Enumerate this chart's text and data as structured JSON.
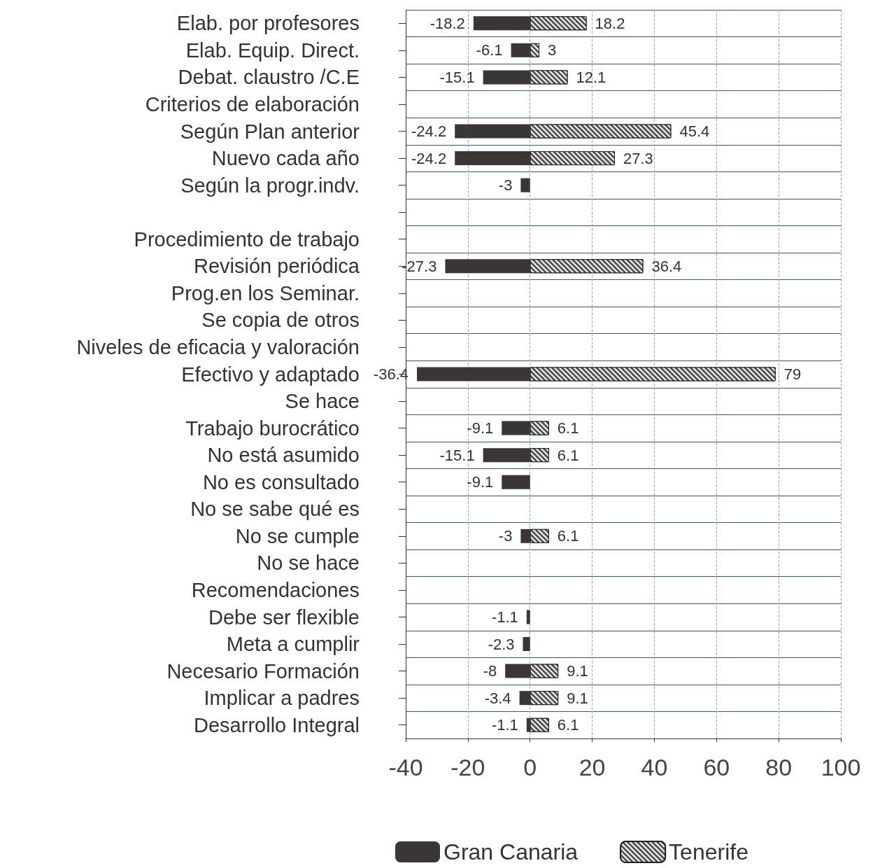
{
  "chart_data": {
    "type": "bar",
    "orientation": "horizontal",
    "categories": [
      "Elab. por profesores",
      "Elab. Equip. Direct.",
      "Debat. claustro /C.E",
      "Criterios de elaboración",
      "Según Plan anterior",
      "Nuevo cada año",
      "Según la progr.indv.",
      null,
      "Procedimiento de trabajo",
      "Revisión periódica",
      "Prog.en los Seminar.",
      "Se copia de otros",
      "Niveles de eficacia y valoración",
      "Efectivo y adaptado",
      "Se hace",
      "Trabajo burocrático",
      "No está asumido",
      "No es consultado",
      "No se sabe qué es",
      "No se cumple",
      "No se hace",
      "Recomendaciones",
      "Debe ser flexible",
      "Meta a cumplir",
      "Necesario Formación",
      "Implicar a padres",
      "Desarrollo Integral"
    ],
    "series": [
      {
        "name": "Gran Canaria",
        "color": "#3a3636",
        "values": [
          -18.2,
          -6.1,
          -15.1,
          null,
          -24.2,
          -24.2,
          -3,
          null,
          null,
          -27.3,
          null,
          null,
          null,
          -36.4,
          null,
          -9.1,
          -15.1,
          -9.1,
          null,
          -3,
          null,
          null,
          -1.1,
          -2.3,
          -8,
          -3.4,
          -1.1
        ]
      },
      {
        "name": "Tenerife",
        "color": "#555555",
        "values": [
          18.2,
          3,
          12.1,
          null,
          45.4,
          27.3,
          null,
          null,
          null,
          36.4,
          null,
          null,
          null,
          79,
          null,
          6.1,
          6.1,
          null,
          null,
          6.1,
          null,
          null,
          null,
          null,
          9.1,
          9.1,
          6.1
        ]
      }
    ],
    "xlim": [
      -40,
      100
    ],
    "xticks": [
      -40,
      -20,
      0,
      20,
      40,
      60,
      80,
      100
    ],
    "data_labels": true,
    "grid": true,
    "legend": "bottom"
  }
}
